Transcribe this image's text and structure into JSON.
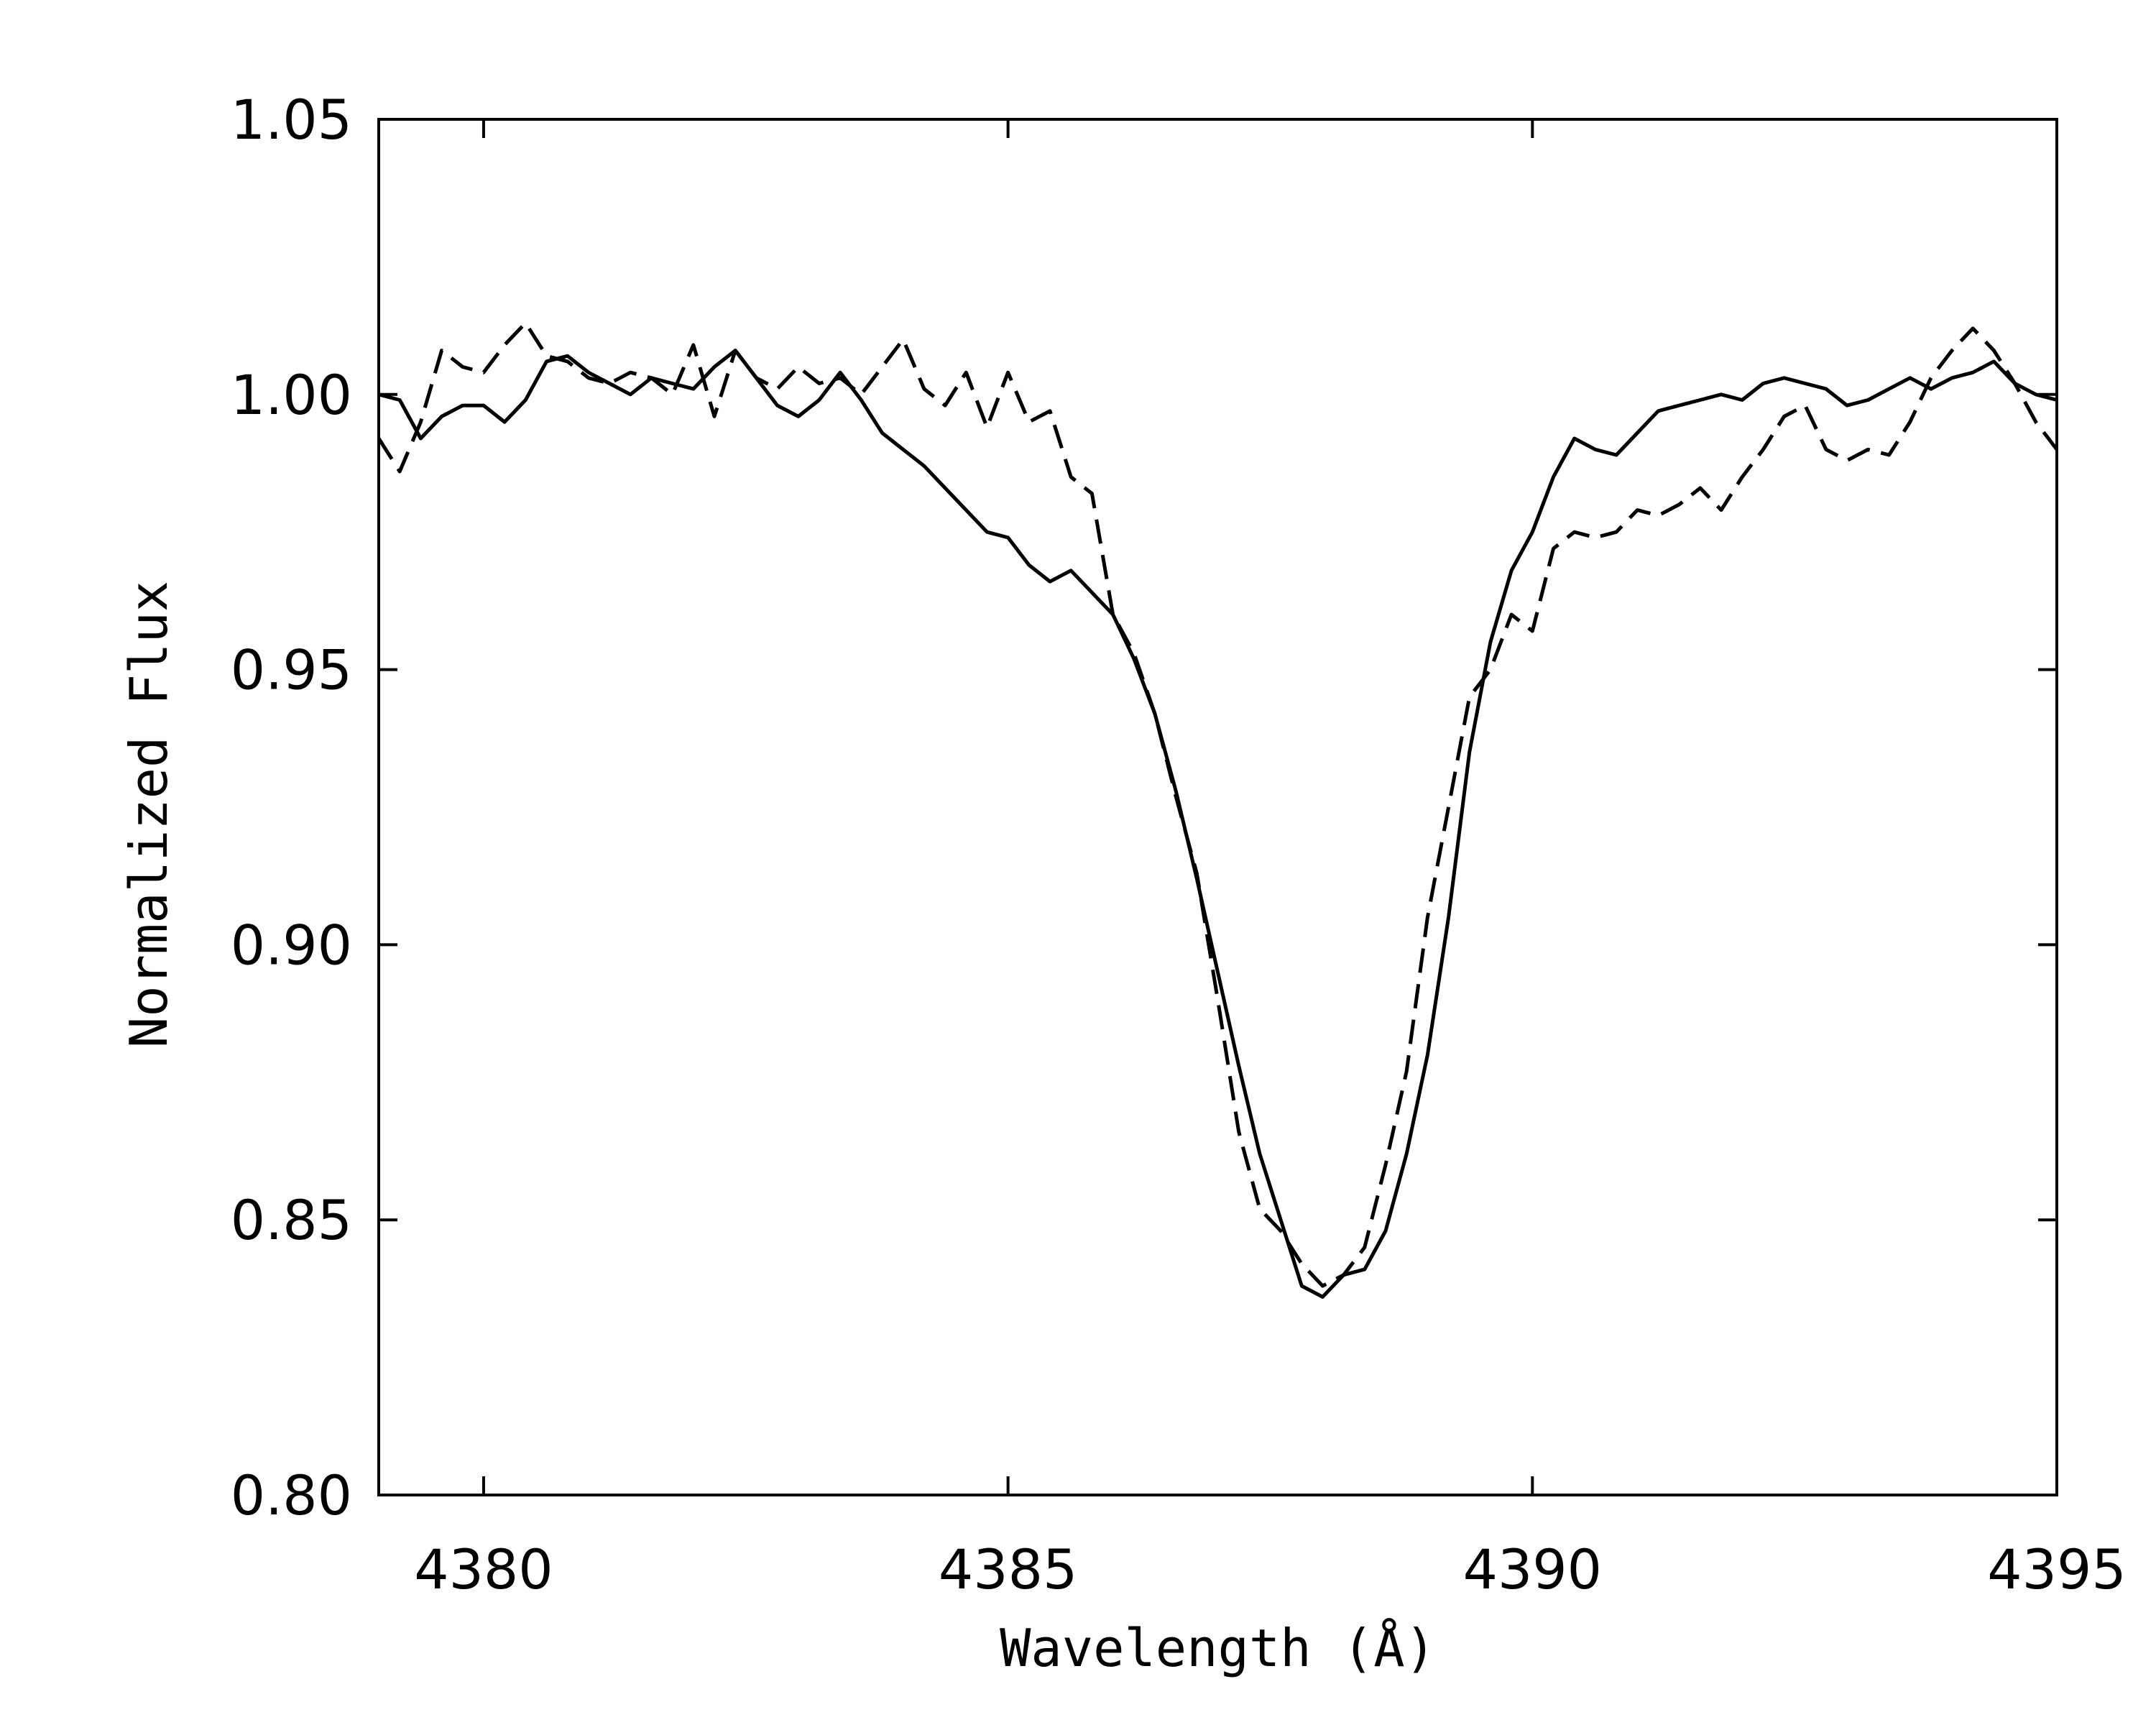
{
  "chart_data": {
    "type": "line",
    "title": "",
    "xlabel": "Wavelength (Å)",
    "ylabel": "Normalized Flux",
    "xlim": [
      4379,
      4395
    ],
    "ylim": [
      0.8,
      1.05
    ],
    "xticks": [
      4380,
      4385,
      4390,
      4395
    ],
    "yticks": [
      0.8,
      0.85,
      0.9,
      0.95,
      1.0,
      1.05
    ],
    "xtick_labels": [
      "4380",
      "4385",
      "4390",
      "4395"
    ],
    "ytick_labels": [
      "0.80",
      "0.85",
      "0.90",
      "0.95",
      "1.00",
      "1.05"
    ],
    "grid": false,
    "legend": "none",
    "series": [
      {
        "style": "solid",
        "color": "#000000",
        "x": [
          4379.0,
          4379.2,
          4379.4,
          4379.6,
          4379.8,
          4380.0,
          4380.2,
          4380.4,
          4380.6,
          4380.8,
          4381.0,
          4381.2,
          4381.4,
          4381.6,
          4381.8,
          4382.0,
          4382.2,
          4382.4,
          4382.6,
          4382.8,
          4383.0,
          4383.2,
          4383.4,
          4383.6,
          4383.8,
          4384.0,
          4384.2,
          4384.4,
          4384.6,
          4384.8,
          4385.0,
          4385.2,
          4385.4,
          4385.6,
          4385.8,
          4386.0,
          4386.2,
          4386.4,
          4386.6,
          4386.8,
          4387.0,
          4387.2,
          4387.4,
          4387.6,
          4387.8,
          4388.0,
          4388.2,
          4388.4,
          4388.6,
          4388.8,
          4389.0,
          4389.2,
          4389.4,
          4389.6,
          4389.8,
          4390.0,
          4390.2,
          4390.4,
          4390.6,
          4390.8,
          4391.0,
          4391.2,
          4391.4,
          4391.6,
          4391.8,
          4392.0,
          4392.2,
          4392.4,
          4392.6,
          4392.8,
          4393.0,
          4393.2,
          4393.4,
          4393.6,
          4393.8,
          4394.0,
          4394.2,
          4394.4,
          4394.6,
          4394.8,
          4395.0
        ],
        "values": [
          1.0,
          0.999,
          0.992,
          0.996,
          0.998,
          0.998,
          0.995,
          0.999,
          1.006,
          1.007,
          1.004,
          1.002,
          1.0,
          1.003,
          1.002,
          1.001,
          1.005,
          1.008,
          1.003,
          0.998,
          0.996,
          0.999,
          1.004,
          0.999,
          0.993,
          0.99,
          0.987,
          0.983,
          0.979,
          0.975,
          0.974,
          0.969,
          0.966,
          0.968,
          0.964,
          0.96,
          0.952,
          0.942,
          0.928,
          0.912,
          0.895,
          0.878,
          0.862,
          0.85,
          0.838,
          0.836,
          0.84,
          0.841,
          0.848,
          0.862,
          0.88,
          0.905,
          0.935,
          0.955,
          0.968,
          0.975,
          0.985,
          0.992,
          0.99,
          0.989,
          0.993,
          0.997,
          0.998,
          0.999,
          1.0,
          0.999,
          1.002,
          1.003,
          1.002,
          1.001,
          0.998,
          0.999,
          1.001,
          1.003,
          1.001,
          1.003,
          1.004,
          1.006,
          1.002,
          1.0,
          0.999
        ]
      },
      {
        "style": "dashed",
        "color": "#000000",
        "x": [
          4379.0,
          4379.2,
          4379.4,
          4379.6,
          4379.8,
          4380.0,
          4380.2,
          4380.4,
          4380.6,
          4380.8,
          4381.0,
          4381.2,
          4381.4,
          4381.6,
          4381.8,
          4382.0,
          4382.2,
          4382.4,
          4382.6,
          4382.8,
          4383.0,
          4383.2,
          4383.4,
          4383.6,
          4383.8,
          4384.0,
          4384.2,
          4384.4,
          4384.6,
          4384.8,
          4385.0,
          4385.2,
          4385.4,
          4385.6,
          4385.8,
          4386.0,
          4386.2,
          4386.4,
          4386.6,
          4386.8,
          4387.0,
          4387.2,
          4387.4,
          4387.6,
          4387.8,
          4388.0,
          4388.2,
          4388.4,
          4388.6,
          4388.8,
          4389.0,
          4389.2,
          4389.4,
          4389.6,
          4389.8,
          4390.0,
          4390.2,
          4390.4,
          4390.6,
          4390.8,
          4391.0,
          4391.2,
          4391.4,
          4391.6,
          4391.8,
          4392.0,
          4392.2,
          4392.4,
          4392.6,
          4392.8,
          4393.0,
          4393.2,
          4393.4,
          4393.6,
          4393.8,
          4394.0,
          4394.2,
          4394.4,
          4394.6,
          4394.8,
          4395.0
        ],
        "values": [
          0.992,
          0.986,
          0.995,
          1.008,
          1.005,
          1.004,
          1.009,
          1.013,
          1.007,
          1.006,
          1.003,
          1.002,
          1.004,
          1.003,
          1.0,
          1.009,
          0.996,
          1.008,
          1.003,
          1.001,
          1.005,
          1.002,
          1.003,
          1.0,
          1.005,
          1.01,
          1.001,
          0.998,
          1.004,
          0.994,
          1.004,
          0.995,
          0.997,
          0.985,
          0.982,
          0.96,
          0.953,
          0.942,
          0.927,
          0.913,
          0.89,
          0.866,
          0.852,
          0.848,
          0.842,
          0.838,
          0.84,
          0.845,
          0.86,
          0.877,
          0.905,
          0.925,
          0.945,
          0.95,
          0.96,
          0.957,
          0.972,
          0.975,
          0.974,
          0.975,
          0.979,
          0.978,
          0.98,
          0.983,
          0.979,
          0.985,
          0.99,
          0.996,
          0.998,
          0.99,
          0.988,
          0.99,
          0.989,
          0.995,
          1.003,
          1.008,
          1.012,
          1.008,
          1.002,
          0.995,
          0.99
        ]
      }
    ]
  }
}
